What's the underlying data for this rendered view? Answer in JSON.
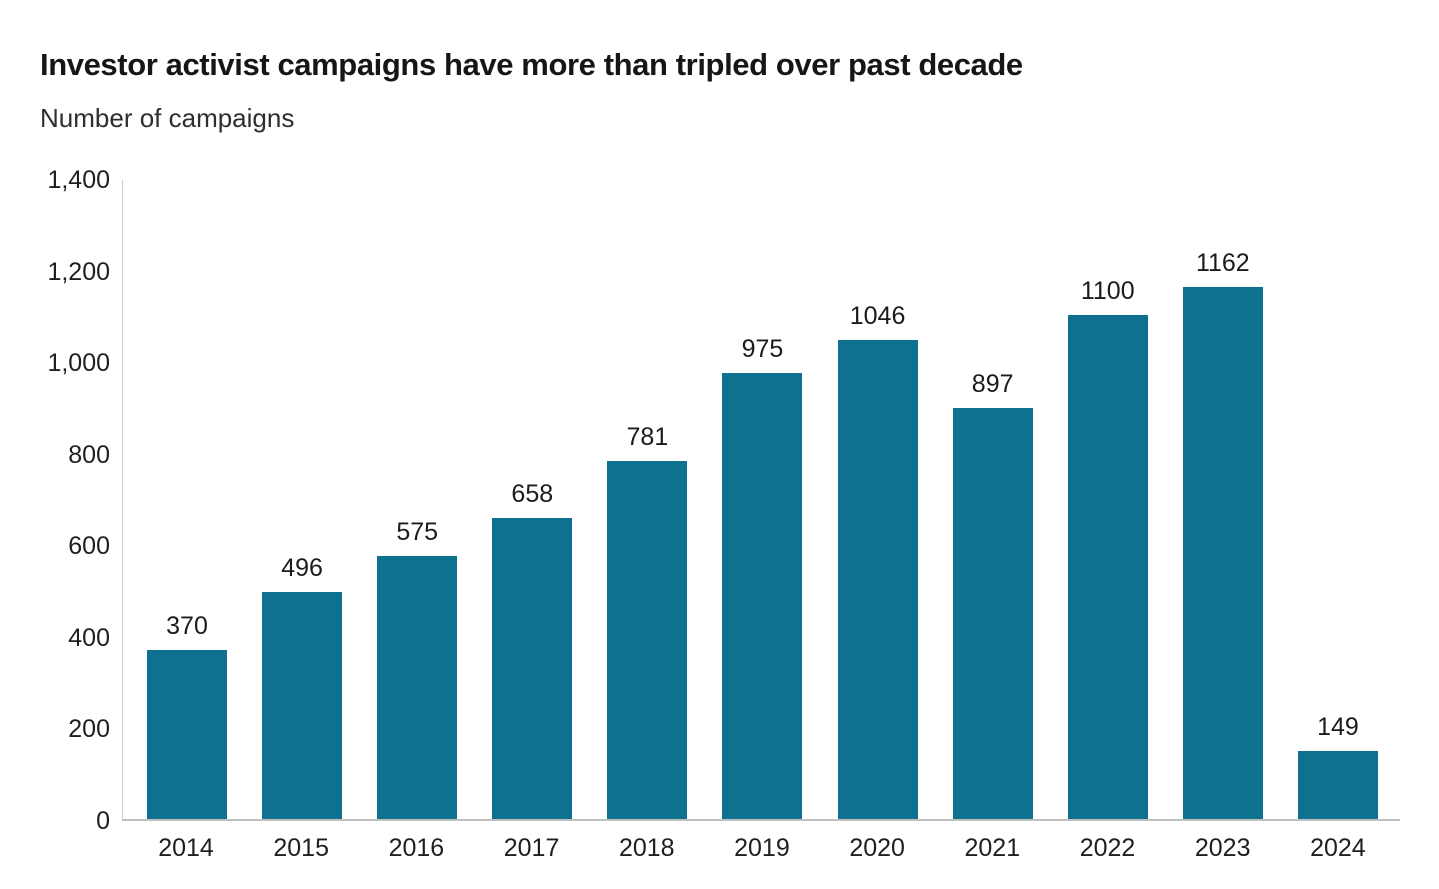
{
  "header": {
    "title": "Investor activist campaigns have more than tripled over past decade",
    "subtitle": "Number of campaigns"
  },
  "chart_data": {
    "type": "bar",
    "title": "Investor activist campaigns have more than tripled over past decade",
    "ylabel": "Number of campaigns",
    "xlabel": "",
    "categories": [
      "2014",
      "2015",
      "2016",
      "2017",
      "2018",
      "2019",
      "2020",
      "2021",
      "2022",
      "2023",
      "2024"
    ],
    "values": [
      370,
      496,
      575,
      658,
      781,
      975,
      1046,
      897,
      1100,
      1162,
      149
    ],
    "value_labels_shown": true,
    "ylim": [
      0,
      1400
    ],
    "yticks": [
      0,
      200,
      400,
      600,
      800,
      1000,
      1200,
      1400
    ],
    "ytick_labels": [
      "0",
      "200",
      "400",
      "600",
      "800",
      "1,000",
      "1,200",
      "1,400"
    ],
    "grid": false,
    "legend_position": "none",
    "colors": {
      "bar": "#0e7190",
      "axis_line": "#c4c4c4",
      "text": "#1f1f1f",
      "background": "#ffffff"
    }
  }
}
